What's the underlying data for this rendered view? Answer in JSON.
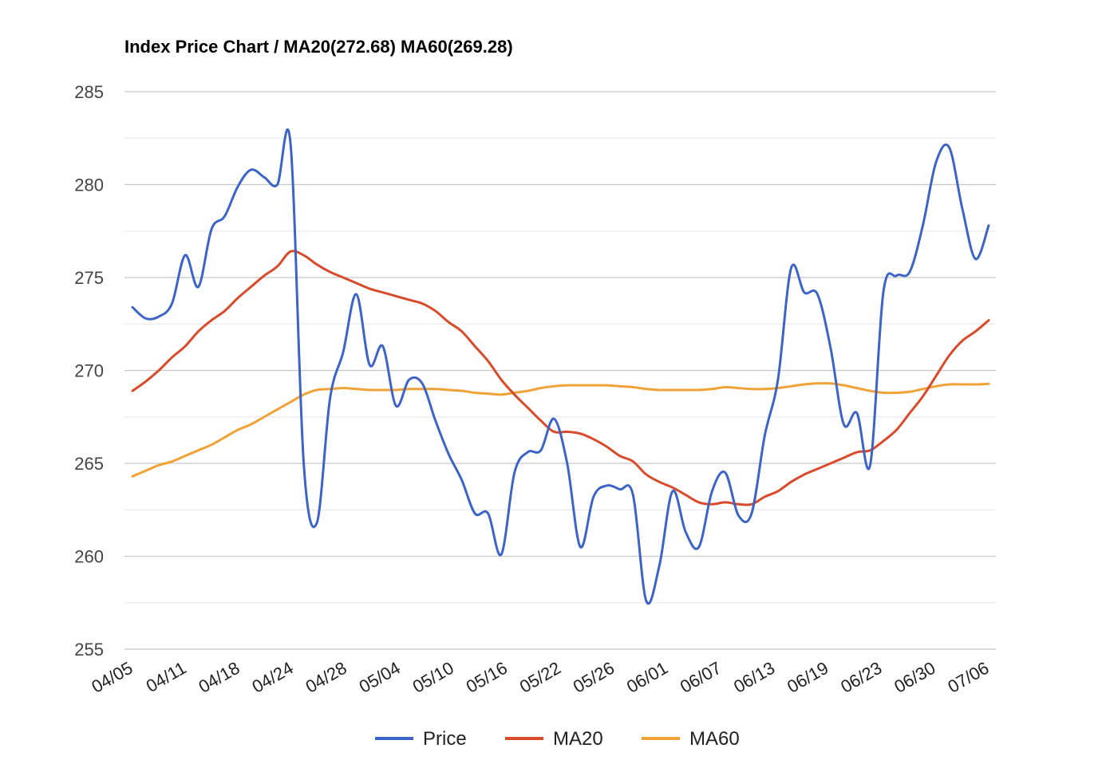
{
  "chart_data": {
    "type": "line",
    "title": "Index Price Chart / MA20(272.68) MA60(269.28)",
    "xlabel": "",
    "ylabel": "",
    "ylim": [
      255,
      285
    ],
    "yticks": [
      285,
      280,
      275,
      270,
      265,
      260,
      255
    ],
    "minor_gridlines": true,
    "legend_position": "bottom",
    "x_tick_labels": [
      "04/05",
      "04/11",
      "04/18",
      "04/24",
      "04/28",
      "05/04",
      "05/10",
      "05/16",
      "05/22",
      "05/26",
      "06/01",
      "06/07",
      "06/13",
      "06/19",
      "06/23",
      "06/30",
      "07/06"
    ],
    "x_tick_index": [
      0,
      5,
      10,
      15,
      20,
      25,
      30,
      35,
      40,
      45,
      50,
      55,
      60,
      65,
      70,
      75,
      80
    ],
    "series": [
      {
        "name": "Price",
        "color": "#3c64c8",
        "values": [
          273.4,
          272.8,
          272.9,
          273.6,
          276.2,
          274.5,
          277.6,
          278.3,
          279.9,
          280.8,
          280.4,
          280.0,
          282.2,
          265.0,
          261.8,
          268.5,
          271.0,
          274.1,
          270.3,
          271.3,
          268.1,
          269.5,
          269.3,
          267.3,
          265.5,
          264.1,
          262.3,
          262.3,
          260.1,
          264.5,
          265.6,
          265.7,
          267.4,
          265.0,
          260.5,
          263.2,
          263.8,
          263.6,
          263.3,
          257.6,
          259.5,
          263.5,
          261.3,
          260.5,
          263.5,
          264.5,
          262.2,
          262.3,
          266.5,
          269.5,
          275.5,
          274.2,
          274.1,
          271.2,
          267.1,
          267.7,
          264.9,
          274.2,
          275.1,
          275.3,
          277.8,
          281.2,
          282.0,
          278.7,
          276.0,
          277.8
        ]
      },
      {
        "name": "MA20",
        "color": "#d84a2a",
        "values": [
          268.9,
          269.4,
          270.0,
          270.7,
          271.3,
          272.1,
          272.7,
          273.2,
          273.9,
          274.5,
          275.1,
          275.6,
          276.4,
          276.2,
          275.7,
          275.3,
          275.0,
          274.7,
          274.4,
          274.2,
          274.0,
          273.8,
          273.6,
          273.2,
          272.6,
          272.1,
          271.3,
          270.5,
          269.5,
          268.7,
          268.0,
          267.3,
          266.7,
          266.7,
          266.6,
          266.3,
          265.9,
          265.4,
          265.1,
          264.4,
          264.0,
          263.7,
          263.3,
          262.9,
          262.8,
          262.9,
          262.8,
          262.8,
          263.2,
          263.5,
          264.0,
          264.4,
          264.7,
          265.0,
          265.3,
          265.6,
          265.7,
          266.2,
          266.8,
          267.7,
          268.6,
          269.7,
          270.8,
          271.6,
          272.1,
          272.7
        ]
      },
      {
        "name": "MA60",
        "color": "#f0a236",
        "values": [
          264.3,
          264.6,
          264.9,
          265.1,
          265.4,
          265.7,
          266.0,
          266.4,
          266.8,
          267.1,
          267.5,
          267.9,
          268.3,
          268.7,
          268.95,
          269.0,
          269.05,
          269.0,
          268.95,
          268.95,
          268.95,
          269.0,
          269.0,
          269.0,
          268.95,
          268.9,
          268.8,
          268.75,
          268.7,
          268.8,
          268.9,
          269.05,
          269.15,
          269.2,
          269.2,
          269.2,
          269.2,
          269.15,
          269.1,
          269.0,
          268.95,
          268.95,
          268.95,
          268.95,
          269.0,
          269.1,
          269.05,
          269.0,
          269.0,
          269.05,
          269.15,
          269.25,
          269.3,
          269.3,
          269.2,
          269.05,
          268.9,
          268.8,
          268.8,
          268.85,
          269.0,
          269.15,
          269.25,
          269.25,
          269.25,
          269.28
        ]
      }
    ]
  }
}
